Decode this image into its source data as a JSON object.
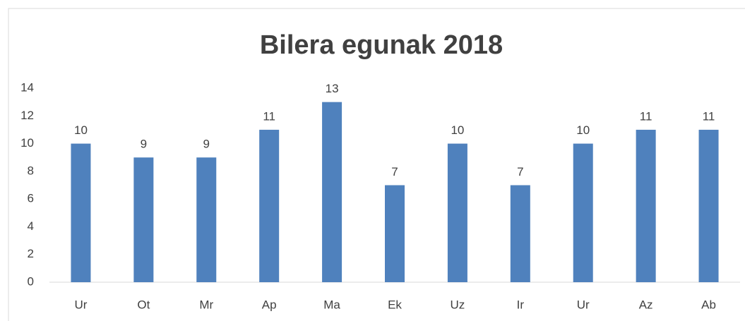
{
  "chart_data": {
    "type": "bar",
    "title": "Bilera egunak 2018",
    "categories": [
      "Ur",
      "Ot",
      "Mr",
      "Ap",
      "Ma",
      "Ek",
      "Uz",
      "Ir",
      "Ur",
      "Az",
      "Ab"
    ],
    "values": [
      10,
      9,
      9,
      11,
      13,
      7,
      10,
      7,
      10,
      11,
      11
    ],
    "color": "#4f81bd",
    "ylim": [
      0,
      14
    ],
    "yticks": [
      0,
      2,
      4,
      6,
      8,
      10,
      12,
      14
    ],
    "grid": false
  }
}
